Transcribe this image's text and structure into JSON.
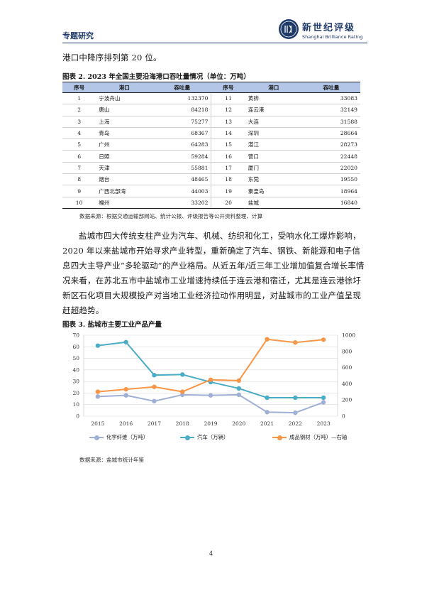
{
  "header": {
    "section_title": "专题研究",
    "brand_cn": "新世纪评级",
    "brand_en": "Shanghai Brilliance Rating"
  },
  "intro_text": "港口中降序排列第 20 位。",
  "table_figure": {
    "caption": "图表 2. 2023 年全国主要沿海港口吞吐量情况（单位：万吨）",
    "headers": [
      "序号",
      "港口",
      "吞吐量",
      "序号",
      "港口",
      "吞吐量"
    ],
    "rows": [
      [
        "1",
        "宁波舟山",
        "132370",
        "11",
        "黄骅",
        "33083"
      ],
      [
        "2",
        "唐山",
        "84218",
        "12",
        "连云港",
        "32149"
      ],
      [
        "3",
        "上海",
        "75277",
        "13",
        "大连",
        "31588"
      ],
      [
        "4",
        "青岛",
        "68367",
        "14",
        "深圳",
        "28664"
      ],
      [
        "5",
        "广州",
        "64283",
        "15",
        "湛江",
        "28273"
      ],
      [
        "6",
        "日照",
        "59284",
        "16",
        "营口",
        "22448"
      ],
      [
        "7",
        "天津",
        "55881",
        "17",
        "厦门",
        "22020"
      ],
      [
        "8",
        "烟台",
        "48465",
        "18",
        "东莞",
        "19550"
      ],
      [
        "9",
        "广西北部湾",
        "44003",
        "19",
        "秦皇岛",
        "18964"
      ],
      [
        "10",
        "福州",
        "33202",
        "20",
        "盐城",
        "16840"
      ]
    ],
    "source": "数据来源：根据交通运输部网站、统计公报、评级报告等公开资料整理、计算"
  },
  "body_paragraph": "盐城市四大传统支柱产业为汽车、机械、纺织和化工，受响水化工爆炸影响，2020 年以来盐城市开始寻求产业转型，重新确定了汽车、钢铁、新能源和电子信息四大主导产业“多轮驱动”的产业格局。从近五年/近三年工业增加值复合增长率情况来看，在苏北五市中盐城市工业增速持续低于连云港和宿迁，尤其是连云港徐圩新区石化项目大规模投产对当地工业经济拉动作用明显，对盐城市的工业产值呈现赶超趋势。",
  "chart_figure": {
    "caption": "图表 3. 盐城市主要工业产品产量",
    "source": "数据来源：盐城市统计年鉴"
  },
  "chart_data": {
    "type": "line",
    "title": "",
    "categories": [
      "2015",
      "2016",
      "2017",
      "2018",
      "2019",
      "2020",
      "2021",
      "2022",
      "2023"
    ],
    "y_left": {
      "min": 0,
      "max": 70,
      "ticks": [
        "0",
        "10",
        "20",
        "30",
        "40",
        "50",
        "60",
        "70"
      ]
    },
    "y_right": {
      "min": 0,
      "max": 1000,
      "ticks": [
        "0",
        "200",
        "400",
        "600",
        "800",
        "1000"
      ]
    },
    "grid": true,
    "legend_position": "bottom",
    "series": [
      {
        "name": "化学纤维（万吨）",
        "axis": "left",
        "color": "#9fb0d4",
        "values": [
          17,
          18,
          13,
          18.5,
          18,
          18.5,
          3.5,
          3,
          12
        ]
      },
      {
        "name": "汽车（万辆）",
        "axis": "left",
        "color": "#4bacc6",
        "values": [
          61,
          64,
          35.5,
          36,
          29.5,
          24,
          16,
          16,
          16
        ]
      },
      {
        "name": "成品钢材（万吨）—右轴",
        "axis": "right",
        "color": "#f79646",
        "values": [
          302,
          332,
          362,
          302,
          450,
          440,
          950,
          910,
          945
        ]
      }
    ]
  },
  "page_number": "4"
}
